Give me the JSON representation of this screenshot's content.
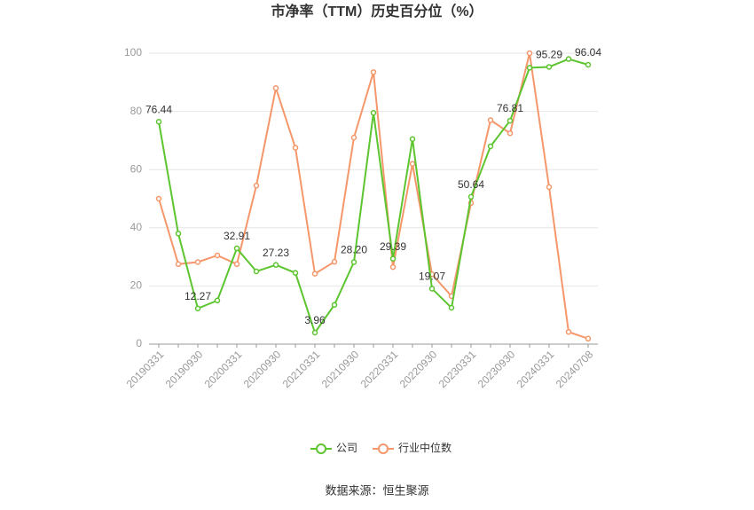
{
  "chart_data": {
    "type": "line",
    "title": "市净率（TTM）历史百分位（%）",
    "source": "数据来源：恒生聚源",
    "categories": [
      "20190331",
      null,
      "20190930",
      null,
      "20200331",
      null,
      "20200930",
      null,
      "20210331",
      null,
      "20210930",
      null,
      "20220331",
      null,
      "20220930",
      null,
      "20230331",
      null,
      "20230930",
      null,
      "20240331",
      null,
      "20240708"
    ],
    "series": [
      {
        "name": "公司",
        "color": "#5cc52f",
        "values": [
          76.44,
          38,
          12.27,
          15,
          32.91,
          25,
          27.23,
          24.5,
          3.96,
          13.5,
          28.2,
          79.5,
          29.39,
          70.5,
          19.07,
          12.5,
          50.64,
          68,
          76.81,
          95,
          95.29,
          98,
          96.04
        ],
        "value_labels": [
          "76.44",
          null,
          "12.27",
          null,
          "32.91",
          null,
          "27.23",
          null,
          "3.96",
          null,
          "28.20",
          null,
          "29.39",
          null,
          "19.07",
          null,
          "50.64",
          null,
          "76.81",
          null,
          "95.29",
          null,
          "96.04"
        ]
      },
      {
        "name": "行业中位数",
        "color": "#f5976b",
        "values": [
          50,
          27.5,
          28.2,
          30.5,
          27.5,
          54.5,
          88,
          67.5,
          24.2,
          28.3,
          71,
          93.5,
          26.5,
          62,
          24,
          16.5,
          48.5,
          77,
          72.5,
          100,
          54,
          4.2,
          1.9
        ]
      }
    ],
    "ylim": [
      0,
      100
    ],
    "yticks": [
      0,
      20,
      40,
      60,
      80,
      100
    ],
    "grid": true,
    "legend": "bottom"
  }
}
